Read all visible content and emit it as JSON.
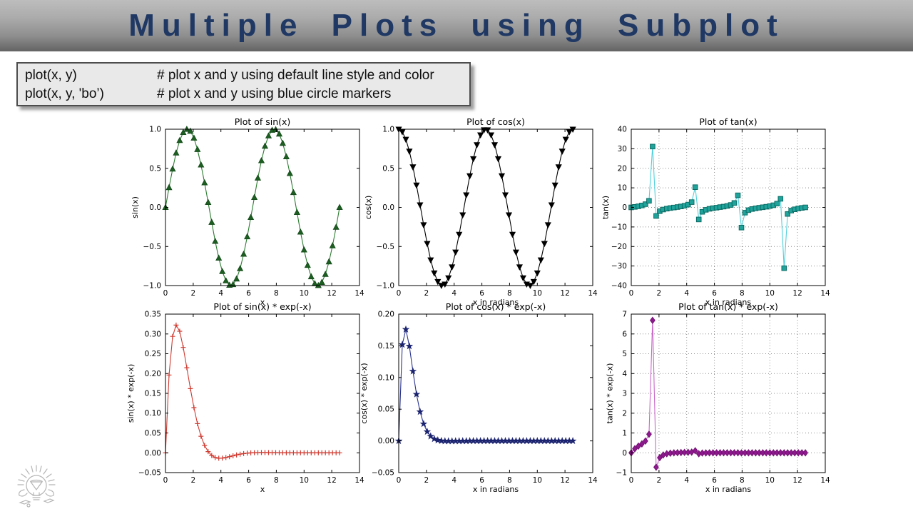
{
  "header": {
    "title": "Multiple Plots using Subplot",
    "title_color": "#1f3864"
  },
  "code_box": {
    "rows": [
      {
        "code": "plot(x, y)",
        "comment": "# plot x and y using default line style and color"
      },
      {
        "code": "plot(x, y, 'bo’)",
        "comment": "# plot x and y using blue circle markers"
      }
    ]
  },
  "logo": {
    "icon": "lightbulb-sketch-icon"
  },
  "chart_data": [
    {
      "type": "line",
      "title": "Plot of sin(x)",
      "xlabel": "x",
      "ylabel": "sin(x)",
      "xlim": [
        0,
        14
      ],
      "ylim": [
        -1,
        1
      ],
      "grid": false,
      "xticks": [
        0,
        2,
        4,
        6,
        8,
        10,
        12,
        14
      ],
      "xtick_labels": [
        "0",
        "2",
        "4",
        "6",
        "8",
        "10",
        "12",
        "14"
      ],
      "yticks": [
        -1,
        -0.5,
        0,
        0.5,
        1
      ],
      "ytick_labels": [
        "−1.0",
        "−0.5",
        "0.0",
        "0.5",
        "1.0"
      ],
      "line_color": "#2e7d32",
      "marker": "triangle-up",
      "marker_color": "#1d5e21",
      "marker_edge": "#14481a",
      "x": [
        0,
        0.256,
        0.513,
        0.769,
        1.026,
        1.282,
        1.539,
        1.795,
        2.052,
        2.308,
        2.565,
        2.821,
        3.077,
        3.334,
        3.59,
        3.847,
        4.103,
        4.36,
        4.616,
        4.873,
        5.129,
        5.386,
        5.642,
        5.898,
        6.155,
        6.411,
        6.668,
        6.924,
        7.181,
        7.437,
        7.694,
        7.95,
        8.207,
        8.463,
        8.72,
        8.976,
        9.232,
        9.489,
        9.745,
        10.002,
        10.258,
        10.515,
        10.771,
        11.028,
        11.284,
        11.541,
        11.797,
        12.053,
        12.31,
        12.566
      ],
      "y": [
        0,
        0.2537,
        0.4907,
        0.6957,
        0.8555,
        0.9587,
        0.9995,
        0.9749,
        0.887,
        0.7406,
        0.5432,
        0.3151,
        0.0641,
        -0.1911,
        -0.4339,
        -0.6484,
        -0.8203,
        -0.9384,
        -0.9954,
        -0.9872,
        -0.9148,
        -0.7832,
        -0.5984,
        -0.3752,
        -0.1279,
        0.1279,
        0.3752,
        0.5984,
        0.7832,
        0.9148,
        0.9872,
        0.9954,
        0.9384,
        0.8203,
        0.6484,
        0.4339,
        0.1911,
        -0.0641,
        -0.3151,
        -0.5432,
        -0.7406,
        -0.887,
        -0.9749,
        -0.9995,
        -0.9587,
        -0.8555,
        -0.6957,
        -0.4907,
        -0.2537,
        0
      ]
    },
    {
      "type": "line",
      "title": "Plot of cos(x)",
      "xlabel": "x in radians",
      "ylabel": "cos(x)",
      "xlim": [
        0,
        14
      ],
      "ylim": [
        -1,
        1
      ],
      "grid": false,
      "xticks": [
        0,
        2,
        4,
        6,
        8,
        10,
        12,
        14
      ],
      "xtick_labels": [
        "0",
        "2",
        "4",
        "6",
        "8",
        "10",
        "12",
        "14"
      ],
      "yticks": [
        -1,
        -0.5,
        0,
        0.5,
        1
      ],
      "ytick_labels": [
        "−1.0",
        "−0.5",
        "0.0",
        "0.5",
        "1.0"
      ],
      "line_color": "#000000",
      "marker": "triangle-down",
      "marker_color": "#000000",
      "marker_edge": "#000000",
      "x": [
        0,
        0.256,
        0.513,
        0.769,
        1.026,
        1.282,
        1.539,
        1.795,
        2.052,
        2.308,
        2.565,
        2.821,
        3.077,
        3.334,
        3.59,
        3.847,
        4.103,
        4.36,
        4.616,
        4.873,
        5.129,
        5.386,
        5.642,
        5.898,
        6.155,
        6.411,
        6.668,
        6.924,
        7.181,
        7.437,
        7.694,
        7.95,
        8.207,
        8.463,
        8.72,
        8.976,
        9.232,
        9.489,
        9.745,
        10.002,
        10.258,
        10.515,
        10.771,
        11.028,
        11.284,
        11.541,
        11.797,
        12.053,
        12.31,
        12.566
      ],
      "y": [
        1,
        0.9673,
        0.8713,
        0.7183,
        0.5178,
        0.2845,
        0.0321,
        -0.2225,
        -0.4617,
        -0.672,
        -0.8396,
        -0.9491,
        -0.9979,
        -0.9816,
        -0.901,
        -0.7613,
        -0.5719,
        -0.3456,
        -0.0962,
        0.1596,
        0.4038,
        0.6218,
        0.8012,
        0.927,
        0.9918,
        0.9918,
        0.927,
        0.8012,
        0.6218,
        0.4038,
        0.1596,
        -0.0962,
        -0.3456,
        -0.5719,
        -0.7613,
        -0.901,
        -0.9816,
        -0.9979,
        -0.9491,
        -0.8396,
        -0.672,
        -0.4617,
        -0.2225,
        0.0321,
        0.2845,
        0.5178,
        0.7183,
        0.8713,
        0.9673,
        1
      ]
    },
    {
      "type": "line",
      "title": "Plot of tan(x)",
      "xlabel": "x in radians",
      "ylabel": "tan(x)",
      "xlim": [
        0,
        14
      ],
      "ylim": [
        -40,
        40
      ],
      "grid": true,
      "xticks": [
        0,
        2,
        4,
        6,
        8,
        10,
        12,
        14
      ],
      "xtick_labels": [
        "0",
        "2",
        "4",
        "6",
        "8",
        "10",
        "12",
        "14"
      ],
      "yticks": [
        -40,
        -30,
        -20,
        -10,
        0,
        10,
        20,
        30,
        40
      ],
      "ytick_labels": [
        "−40",
        "−30",
        "−20",
        "−10",
        "0",
        "10",
        "20",
        "30",
        "40"
      ],
      "line_color": "#4fd1dc",
      "marker": "square",
      "marker_color": "#1fa39b",
      "marker_edge": "#0c6b64",
      "x": [
        0,
        0.256,
        0.513,
        0.769,
        1.026,
        1.282,
        1.539,
        1.795,
        2.052,
        2.308,
        2.565,
        2.821,
        3.077,
        3.334,
        3.59,
        3.847,
        4.103,
        4.36,
        4.616,
        4.873,
        5.129,
        5.386,
        5.642,
        5.898,
        6.155,
        6.411,
        6.668,
        6.924,
        7.181,
        7.437,
        7.694,
        7.95,
        8.207,
        8.463,
        8.72,
        8.976,
        9.232,
        9.489,
        9.745,
        10.002,
        10.258,
        10.515,
        10.771,
        11.028,
        11.284,
        11.541,
        11.797,
        12.053,
        12.31,
        12.566
      ],
      "y": [
        0,
        0.2623,
        0.5632,
        0.9685,
        1.6522,
        3.3698,
        31.1369,
        -4.3816,
        -1.9212,
        -1.1021,
        -0.647,
        -0.332,
        -0.0642,
        0.1947,
        0.4816,
        0.8517,
        1.4343,
        2.7153,
        10.3472,
        -6.1855,
        -2.2655,
        -1.2596,
        -0.7469,
        -0.4047,
        -0.129,
        0.129,
        0.4047,
        0.7469,
        1.2596,
        2.2655,
        6.1855,
        -10.3472,
        -2.7153,
        -1.4343,
        -0.8517,
        -0.4816,
        -0.1947,
        0.0642,
        0.332,
        0.647,
        1.1021,
        1.9212,
        4.3816,
        -31.1369,
        -3.3698,
        -1.6522,
        -0.9685,
        -0.5632,
        -0.2623,
        0
      ]
    },
    {
      "type": "line",
      "title": "Plot of sin(x) * exp(-x)",
      "xlabel": "x",
      "ylabel": "sin(x) * exp(-x)",
      "xlim": [
        0,
        14
      ],
      "ylim": [
        -0.05,
        0.35
      ],
      "grid": false,
      "xticks": [
        0,
        2,
        4,
        6,
        8,
        10,
        12,
        14
      ],
      "xtick_labels": [
        "0",
        "2",
        "4",
        "6",
        "8",
        "10",
        "12",
        "14"
      ],
      "yticks": [
        -0.05,
        0,
        0.05,
        0.1,
        0.15,
        0.2,
        0.25,
        0.3,
        0.35
      ],
      "ytick_labels": [
        "−0.05",
        "0.00",
        "0.05",
        "0.10",
        "0.15",
        "0.20",
        "0.25",
        "0.30",
        "0.35"
      ],
      "line_color": "#cf3b31",
      "marker": "plus",
      "marker_color": "#cf3b31",
      "marker_edge": "#cf3b31",
      "x": [
        0,
        0.256,
        0.513,
        0.769,
        1.026,
        1.282,
        1.539,
        1.795,
        2.052,
        2.308,
        2.565,
        2.821,
        3.077,
        3.334,
        3.59,
        3.847,
        4.103,
        4.36,
        4.616,
        4.873,
        5.129,
        5.386,
        5.642,
        5.898,
        6.155,
        6.411,
        6.668,
        6.924,
        7.181,
        7.437,
        7.694,
        7.95,
        8.207,
        8.463,
        8.72,
        8.976,
        9.232,
        9.489,
        9.745,
        10.002,
        10.258,
        10.515,
        10.771,
        11.028,
        11.284,
        11.541,
        11.797,
        12.053,
        12.31,
        12.566
      ],
      "y": [
        0,
        0.1963,
        0.2938,
        0.3223,
        0.3067,
        0.2659,
        0.2146,
        0.1619,
        0.114,
        0.0736,
        0.0418,
        0.0187,
        0.003,
        -0.0068,
        -0.012,
        -0.0138,
        -0.0135,
        -0.012,
        -0.0098,
        -0.0076,
        -0.0054,
        -0.0036,
        -0.0021,
        -0.001,
        -0.0003,
        0.0002,
        0.0005,
        0.0006,
        0.0006,
        0.0005,
        0.0005,
        0.0004,
        0.0003,
        0.0002,
        0.0001,
        0.0001,
        0,
        0,
        0,
        0,
        0,
        0,
        0,
        0,
        0,
        0,
        0,
        0,
        0,
        0
      ]
    },
    {
      "type": "line",
      "title": "Plot of cos(x) * exp(-x)",
      "xlabel": "x in radians",
      "ylabel": "cos(x) * exp(-x)",
      "xlim": [
        0,
        14
      ],
      "ylim": [
        -0.05,
        0.2
      ],
      "grid": false,
      "xticks": [
        0,
        2,
        4,
        6,
        8,
        10,
        12,
        14
      ],
      "xtick_labels": [
        "0",
        "2",
        "4",
        "6",
        "8",
        "10",
        "12",
        "14"
      ],
      "yticks": [
        -0.05,
        0,
        0.05,
        0.1,
        0.15,
        0.2
      ],
      "ytick_labels": [
        "−0.05",
        "0.00",
        "0.05",
        "0.10",
        "0.15",
        "0.20"
      ],
      "line_color": "#2b3590",
      "marker": "star",
      "marker_color": "#1c2470",
      "marker_edge": "#1c2470",
      "x": [
        0,
        0.256,
        0.513,
        0.769,
        1.026,
        1.282,
        1.539,
        1.795,
        2.052,
        2.308,
        2.565,
        2.821,
        3.077,
        3.334,
        3.59,
        3.847,
        4.103,
        4.36,
        4.616,
        4.873,
        5.129,
        5.386,
        5.642,
        5.898,
        6.155,
        6.411,
        6.668,
        6.924,
        7.181,
        7.437,
        7.694,
        7.95,
        8.207,
        8.463,
        8.72,
        8.976,
        9.232,
        9.489,
        9.745,
        10.002,
        10.258,
        10.515,
        10.771,
        11.028,
        11.284,
        11.541,
        11.797,
        12.053,
        12.31,
        12.566
      ],
      "y": [
        0,
        0.1519,
        0.1759,
        0.1494,
        0.1099,
        0.0737,
        0.0461,
        0.0269,
        0.0146,
        0.0073,
        0.0032,
        0.0011,
        0.0001,
        -0.0002,
        -0.0003,
        -0.0003,
        -0.0002,
        -0.0002,
        -0.0001,
        -0.0001,
        0,
        0,
        0,
        0,
        0,
        0,
        0,
        0,
        0,
        0,
        0,
        0,
        0,
        0,
        0,
        0,
        0,
        0,
        0,
        0,
        0,
        0,
        0,
        0,
        0,
        0,
        0,
        0,
        0,
        0
      ]
    },
    {
      "type": "line",
      "title": "Plot of tan(x) * exp(-x)",
      "xlabel": "x in radians",
      "ylabel": "tan(x) * exp(-x)",
      "xlim": [
        0,
        14
      ],
      "ylim": [
        -1,
        7
      ],
      "grid": true,
      "xticks": [
        0,
        2,
        4,
        6,
        8,
        10,
        12,
        14
      ],
      "xtick_labels": [
        "0",
        "2",
        "4",
        "6",
        "8",
        "10",
        "12",
        "14"
      ],
      "yticks": [
        -1,
        0,
        1,
        2,
        3,
        4,
        5,
        6,
        7
      ],
      "ytick_labels": [
        "−1",
        "0",
        "1",
        "2",
        "3",
        "4",
        "5",
        "6",
        "7"
      ],
      "line_color": "#c967c9",
      "marker": "diamond",
      "marker_color": "#8e188e",
      "marker_edge": "#6e106e",
      "x": [
        0,
        0.256,
        0.513,
        0.769,
        1.026,
        1.282,
        1.539,
        1.795,
        2.052,
        2.308,
        2.565,
        2.821,
        3.077,
        3.334,
        3.59,
        3.847,
        4.103,
        4.36,
        4.616,
        4.873,
        5.129,
        5.386,
        5.642,
        5.898,
        6.155,
        6.411,
        6.668,
        6.924,
        7.181,
        7.437,
        7.694,
        7.95,
        8.207,
        8.463,
        8.72,
        8.976,
        9.232,
        9.489,
        9.745,
        10.002,
        10.258,
        10.515,
        10.771,
        11.028,
        11.284,
        11.541,
        11.797,
        12.053,
        12.31,
        12.566
      ],
      "y": [
        0,
        0.203,
        0.3372,
        0.4487,
        0.5923,
        0.9348,
        6.6851,
        -0.7278,
        -0.2469,
        -0.1096,
        -0.0498,
        -0.0198,
        -0.003,
        0.007,
        0.0133,
        0.0181,
        0.0237,
        0.0348,
        0.1023,
        -0.0473,
        -0.0134,
        -0.0058,
        -0.0026,
        -0.0011,
        -0.0003,
        0.0002,
        0.0005,
        0.0007,
        0.001,
        0.0013,
        0.0028,
        -0.0037,
        -0.0007,
        -0.0003,
        -0.0001,
        -0.0001,
        0,
        0,
        0,
        0,
        0,
        0,
        0.0001,
        -0.0005,
        0,
        0,
        0,
        0,
        0,
        0
      ]
    }
  ]
}
